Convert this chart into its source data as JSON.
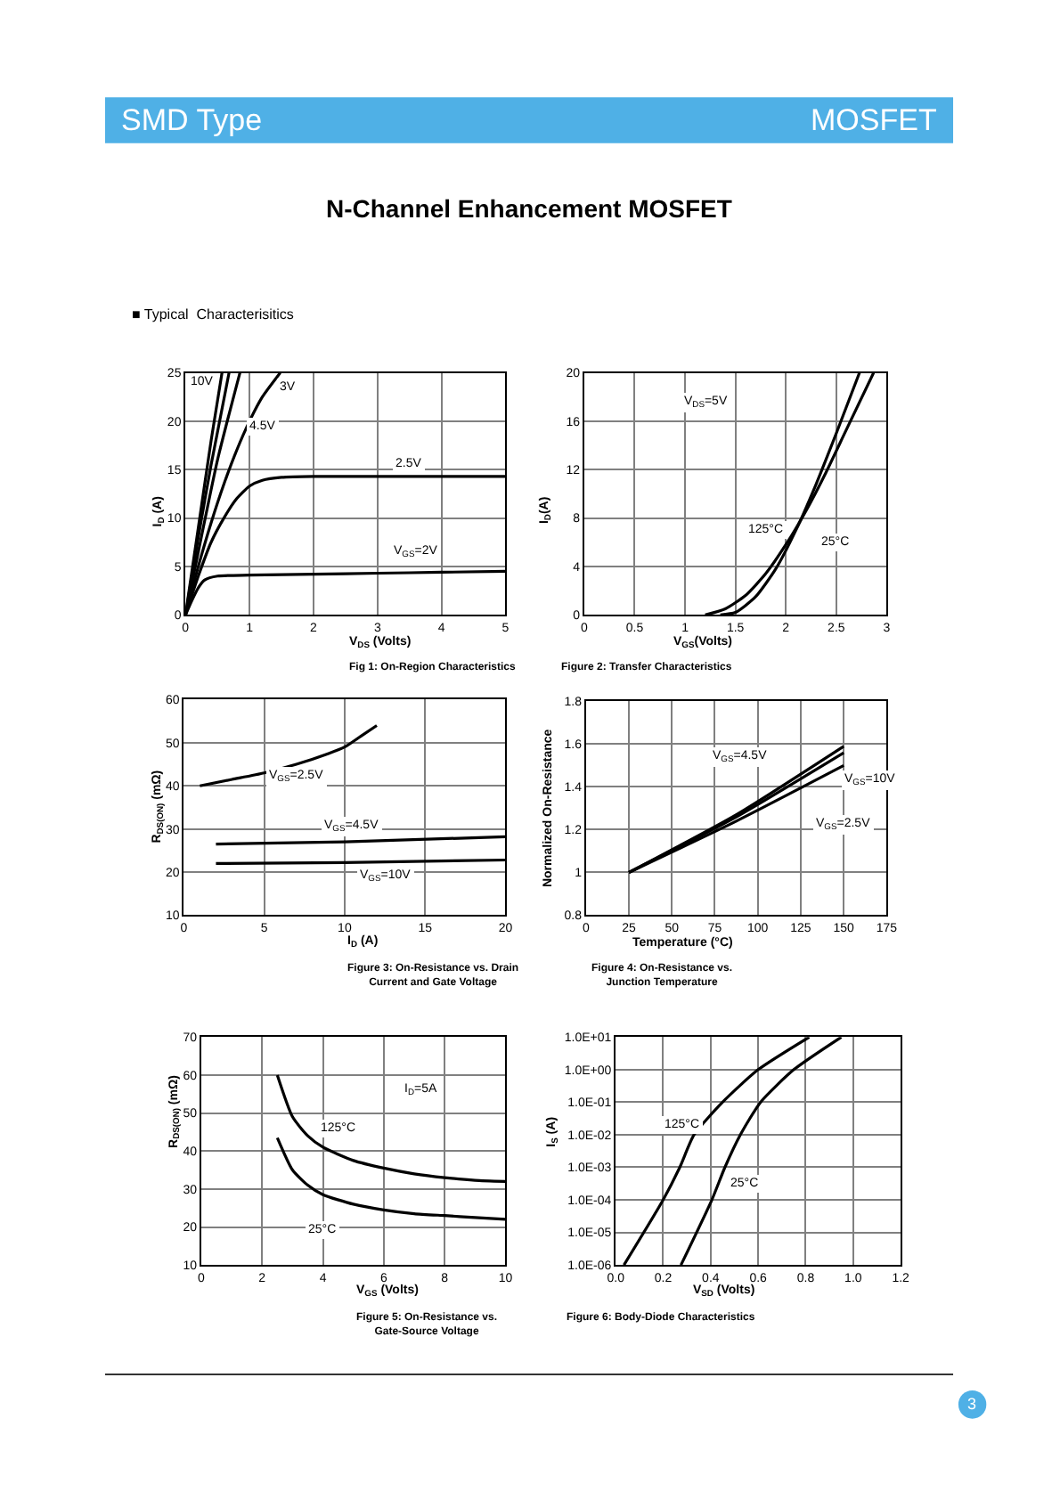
{
  "chart_data": [
    {
      "type": "other",
      "title": "N-Channel Enhancement MOSFET",
      "annotations": [
        "SMD Type",
        "MOSFET",
        "■ Typical  Characterisitics",
        "3"
      ]
    },
    {
      "type": "line",
      "title": "Fig 1: On-Region Characteristics",
      "xlabel": "V$_{DS}$ (Volts)",
      "ylabel": "I$_{D}$ (A)",
      "xlim": [
        0,
        5
      ],
      "xticks": [
        0,
        1,
        2,
        3,
        4,
        5
      ],
      "ylim": [
        0,
        25
      ],
      "yticks": [
        0,
        5,
        10,
        15,
        20,
        25
      ],
      "grid": true,
      "series": [
        {
          "color": "#000000",
          "x": [
            0,
            0.2,
            0.4,
            0.57
          ],
          "values": [
            0,
            9,
            18,
            25
          ]
        },
        {
          "color": "#000000",
          "x": [
            0,
            0.2,
            0.4,
            0.68
          ],
          "values": [
            0,
            8,
            15.5,
            25
          ]
        },
        {
          "color": "#000000",
          "x": [
            0,
            0.2,
            0.5,
            0.85
          ],
          "values": [
            0,
            6.5,
            16,
            25
          ]
        },
        {
          "color": "#000000",
          "x": [
            0,
            0.2,
            0.4,
            0.6,
            0.8,
            1.0,
            1.2,
            1.48
          ],
          "values": [
            0,
            5,
            9.5,
            13.5,
            17,
            20,
            22.5,
            25
          ]
        },
        {
          "color": "#000000",
          "x": [
            0,
            0.2,
            0.4,
            0.6,
            0.8,
            1.0,
            1.2,
            1.5,
            2,
            3,
            5
          ],
          "values": [
            0,
            4,
            7.5,
            10,
            12,
            13.3,
            13.9,
            14.2,
            14.3,
            14.3,
            14.3
          ]
        },
        {
          "color": "#000000",
          "x": [
            0,
            0.1,
            0.2,
            0.3,
            0.5,
            1,
            2,
            3,
            4,
            5
          ],
          "values": [
            0,
            1.5,
            2.8,
            3.6,
            4.0,
            4.1,
            4.2,
            4.3,
            4.4,
            4.5
          ]
        }
      ],
      "annotations": [
        {
          "text": "10V",
          "x": 0.25,
          "y": 24
        },
        {
          "text": "4.5V",
          "x": 1.2,
          "y": 19.5
        },
        {
          "text": "3V",
          "x": 1.6,
          "y": 23.5
        },
        {
          "text": "2.5V",
          "x": 3.5,
          "y": 15.5
        },
        {
          "text": "V$_{GS}$=2V",
          "x": 3.6,
          "y": 6.5
        }
      ]
    },
    {
      "type": "line",
      "title": "Figure 2: Transfer Characteristics",
      "xlabel": "V$_{GS}$(Volts)",
      "ylabel": "I$_{D}$(A)",
      "xlim": [
        0,
        3
      ],
      "xticks": [
        0,
        0.5,
        1,
        1.5,
        2,
        2.5,
        3
      ],
      "ylim": [
        0,
        20
      ],
      "yticks": [
        0,
        4,
        8,
        12,
        16,
        20
      ],
      "grid": true,
      "series": [
        {
          "color": "#000000",
          "x": [
            1.2,
            1.4,
            1.6,
            1.8,
            2.0,
            2.2,
            2.4,
            2.6,
            2.87
          ],
          "values": [
            0,
            0.5,
            1.6,
            3.4,
            5.8,
            8.6,
            11.8,
            15.3,
            20
          ]
        },
        {
          "color": "#000000",
          "x": [
            1.35,
            1.5,
            1.7,
            1.9,
            2.1,
            2.3,
            2.5,
            2.73
          ],
          "values": [
            0,
            0.2,
            1.5,
            3.8,
            7,
            10.8,
            15,
            20
          ]
        }
      ],
      "annotations": [
        {
          "text": "V$_{DS}$=5V",
          "x": 1.2,
          "y": 17.5
        },
        {
          "text": "125°C",
          "x": 1.8,
          "y": 7
        },
        {
          "text": "25°C",
          "x": 2.5,
          "y": 6
        }
      ]
    },
    {
      "type": "line",
      "title": "Figure 3: On-Resistance vs. Drain Current and Gate Voltage",
      "xlabel": "I$_{D}$ (A)",
      "ylabel": "R$_{DS(ON)}$ (mΩ)",
      "xlim": [
        0,
        20
      ],
      "xticks": [
        0,
        5,
        10,
        15,
        20
      ],
      "ylim": [
        10,
        60
      ],
      "yticks": [
        10,
        20,
        30,
        40,
        50,
        60
      ],
      "grid": true,
      "series": [
        {
          "color": "#000000",
          "x": [
            1,
            3,
            5,
            7,
            9,
            10,
            11,
            12
          ],
          "values": [
            40,
            41.5,
            43,
            45,
            47.5,
            49,
            51.5,
            54
          ]
        },
        {
          "color": "#000000",
          "x": [
            2,
            10,
            20
          ],
          "values": [
            26.5,
            27,
            28.2
          ]
        },
        {
          "color": "#000000",
          "x": [
            2,
            10,
            20
          ],
          "values": [
            22,
            22.2,
            22.8
          ]
        }
      ],
      "annotations": [
        {
          "text": "V$_{GS}$=2.5V",
          "x": 7,
          "y": 42
        },
        {
          "text": "V$_{GS}$=4.5V",
          "x": 10.5,
          "y": 30.5
        },
        {
          "text": "V$_{GS}$=10V",
          "x": 12.5,
          "y": 19
        }
      ]
    },
    {
      "type": "line",
      "title": "Figure 4: On-Resistance vs. Junction Temperature",
      "xlabel": "Temperature (°C)",
      "ylabel": "Normalized On-Resistance",
      "xlim": [
        0,
        175
      ],
      "xticks": [
        0,
        25,
        50,
        75,
        100,
        125,
        150,
        175
      ],
      "ylim": [
        0.8,
        1.8
      ],
      "yticks": [
        0.8,
        1,
        1.2,
        1.4,
        1.6,
        1.8
      ],
      "grid": true,
      "series": [
        {
          "color": "#000000",
          "x": [
            25,
            87.5,
            150
          ],
          "values": [
            1,
            1.27,
            1.59
          ]
        },
        {
          "color": "#000000",
          "x": [
            25,
            87.5,
            150
          ],
          "values": [
            1,
            1.26,
            1.56
          ]
        },
        {
          "color": "#000000",
          "x": [
            25,
            87.5,
            150
          ],
          "values": [
            1,
            1.24,
            1.5
          ]
        }
      ],
      "annotations": [
        {
          "text": "V$_{GS}$=4.5V",
          "x": 90,
          "y": 1.54
        },
        {
          "text": "V$_{GS}$=10V",
          "x": 165,
          "y": 1.43
        },
        {
          "text": "V$_{GS}$=2.5V",
          "x": 150,
          "y": 1.22
        }
      ]
    },
    {
      "type": "line",
      "title": "Figure 5: On-Resistance vs. Gate-Source Voltage",
      "xlabel": "V$_{GS}$ (Volts)",
      "ylabel": "R$_{DS(ON)}$ (mΩ)",
      "xlim": [
        0,
        10
      ],
      "xticks": [
        0,
        2,
        4,
        6,
        8,
        10
      ],
      "ylim": [
        10,
        70
      ],
      "yticks": [
        10,
        20,
        30,
        40,
        50,
        60,
        70
      ],
      "grid": true,
      "series": [
        {
          "color": "#000000",
          "x": [
            2.5,
            3,
            3.5,
            4,
            5,
            6,
            7,
            8,
            9,
            10
          ],
          "values": [
            60,
            49,
            44,
            41,
            37.5,
            35.5,
            34,
            33,
            32.3,
            32
          ]
        },
        {
          "color": "#000000",
          "x": [
            2.5,
            3,
            3.5,
            4,
            5,
            6,
            7,
            8,
            9,
            10
          ],
          "values": [
            43.5,
            35,
            31,
            28.5,
            26,
            24.5,
            23.5,
            23,
            22.5,
            22
          ]
        }
      ],
      "annotations": [
        {
          "text": "I$_{D}$=5A",
          "x": 7.2,
          "y": 56
        },
        {
          "text": "125°C",
          "x": 4.5,
          "y": 46
        },
        {
          "text": "25°C",
          "x": 4.0,
          "y": 19
        }
      ]
    },
    {
      "type": "line",
      "title": "Figure 6: Body-Diode Characteristics",
      "xlabel": "V$_{SD}$ (Volts)",
      "ylabel": "I$_{S}$ (A)",
      "log": "y",
      "xlim": [
        0,
        1.2
      ],
      "xticks": [
        {
          "value": 0,
          "label": "0.0"
        },
        0.2,
        0.4,
        0.6,
        0.8,
        {
          "value": 1,
          "label": "1.0"
        },
        1.2
      ],
      "ylim": [
        1e-06,
        10
      ],
      "yticks": [
        {
          "value": 1e-06,
          "label": "1.0E-06"
        },
        {
          "value": 1e-05,
          "label": "1.0E-05"
        },
        {
          "value": 0.0001,
          "label": "1.0E-04"
        },
        {
          "value": 0.001,
          "label": "1.0E-03"
        },
        {
          "value": 0.01,
          "label": "1.0E-02"
        },
        {
          "value": 0.1,
          "label": "1.0E-01"
        },
        {
          "value": 1,
          "label": "1.0E+00"
        },
        {
          "value": 10,
          "label": "1.0E+01"
        }
      ],
      "grid": true,
      "series": [
        {
          "color": "#000000",
          "x": [
            0.035,
            0.2,
            0.27,
            0.33,
            0.45,
            0.6,
            0.815
          ],
          "values": [
            1e-06,
            0.0001,
            0.001,
            0.01,
            0.1,
            1,
            10
          ]
        },
        {
          "color": "#000000",
          "x": [
            0.275,
            0.405,
            0.46,
            0.525,
            0.61,
            0.75,
            0.95
          ],
          "values": [
            1e-06,
            0.0001,
            0.001,
            0.01,
            0.1,
            1,
            10
          ]
        }
      ],
      "annotations": [
        {
          "text": "125°C",
          "x": 0.28,
          "y": 0.02
        },
        {
          "text": "25°C",
          "x": 0.54,
          "y": 0.0003
        }
      ]
    }
  ]
}
